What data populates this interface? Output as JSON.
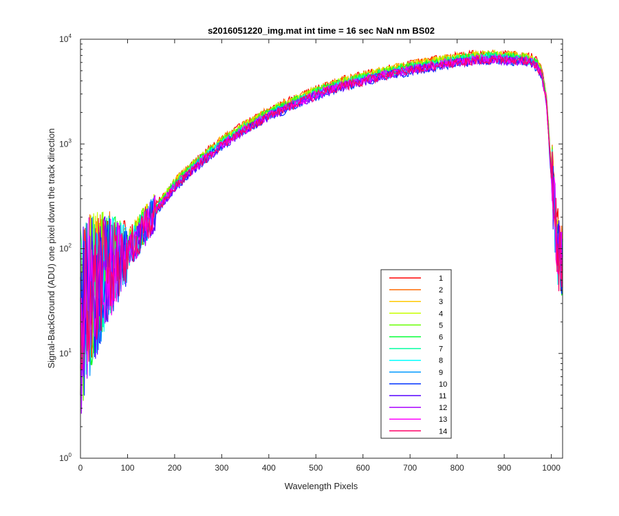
{
  "chart_data": {
    "type": "line",
    "title": "s2016051220_img.mat int time = 16 sec  NaN nm BS02",
    "xlabel": "Wavelength Pixels",
    "ylabel": "Signal-BackGround (ADU) one pixel down the track direction",
    "xlim": [
      0,
      1024
    ],
    "ylim": [
      1,
      10000
    ],
    "y_scale": "log",
    "x_ticks": [
      0,
      100,
      200,
      300,
      400,
      500,
      600,
      700,
      800,
      900,
      1000
    ],
    "x_tick_labels": [
      "0",
      "100",
      "200",
      "300",
      "400",
      "500",
      "600",
      "700",
      "800",
      "900",
      "1000"
    ],
    "y_ticks": [
      1,
      10,
      100,
      1000,
      10000
    ],
    "y_tick_labels": [
      {
        "base": "10",
        "exp": "0"
      },
      {
        "base": "10",
        "exp": "1"
      },
      {
        "base": "10",
        "exp": "2"
      },
      {
        "base": "10",
        "exp": "3"
      },
      {
        "base": "10",
        "exp": "4"
      }
    ],
    "grid": false,
    "legend_position": "lower-right",
    "approximate_profile": {
      "x": [
        0,
        20,
        50,
        100,
        150,
        200,
        250,
        300,
        350,
        400,
        450,
        500,
        550,
        600,
        650,
        700,
        750,
        800,
        850,
        880,
        900,
        930,
        950,
        960,
        970,
        980,
        990,
        1000,
        1005,
        1010,
        1015,
        1024
      ],
      "y": [
        20,
        35,
        60,
        90,
        200,
        400,
        650,
        1000,
        1400,
        1900,
        2400,
        3000,
        3600,
        4100,
        4700,
        5200,
        5700,
        6200,
        6500,
        6600,
        6500,
        6400,
        6300,
        6000,
        5600,
        4500,
        2500,
        500,
        300,
        150,
        90,
        70
      ]
    },
    "series": [
      {
        "name": "1",
        "color": "#ff0000",
        "scale": 1.1
      },
      {
        "name": "2",
        "color": "#ff6a00",
        "scale": 1.09
      },
      {
        "name": "3",
        "color": "#ffc800",
        "scale": 1.08
      },
      {
        "name": "4",
        "color": "#c8ff00",
        "scale": 1.07
      },
      {
        "name": "5",
        "color": "#66ff00",
        "scale": 1.06
      },
      {
        "name": "6",
        "color": "#00ff33",
        "scale": 1.04
      },
      {
        "name": "7",
        "color": "#00ffa0",
        "scale": 1.02
      },
      {
        "name": "8",
        "color": "#00ffff",
        "scale": 1.0
      },
      {
        "name": "9",
        "color": "#0099ff",
        "scale": 0.98
      },
      {
        "name": "10",
        "color": "#0033ff",
        "scale": 0.95
      },
      {
        "name": "11",
        "color": "#5500ff",
        "scale": 0.96
      },
      {
        "name": "12",
        "color": "#aa00ff",
        "scale": 0.97
      },
      {
        "name": "13",
        "color": "#ff00ff",
        "scale": 0.99
      },
      {
        "name": "14",
        "color": "#ff0066",
        "scale": 0.97
      }
    ]
  }
}
